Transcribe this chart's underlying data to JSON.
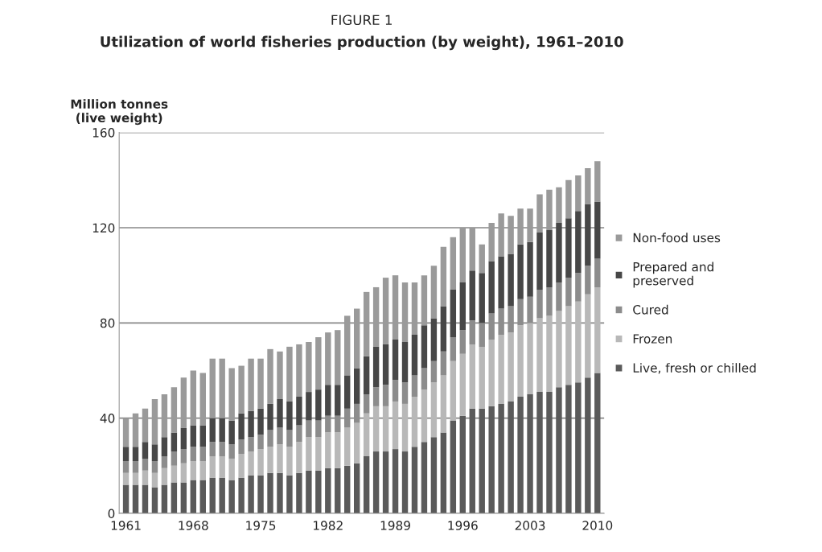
{
  "chart_data": {
    "type": "bar",
    "stacked": true,
    "title": "FIGURE 1",
    "subtitle": "Utilization of world fisheries production (by weight), 1961–2010",
    "ylabel": "Million tonnes\n(live weight)",
    "categories": [
      "1961",
      null,
      null,
      null,
      null,
      null,
      null,
      "1968",
      null,
      null,
      null,
      null,
      null,
      null,
      "1975",
      null,
      null,
      null,
      null,
      null,
      null,
      "1982",
      null,
      null,
      null,
      null,
      null,
      null,
      "1989",
      null,
      null,
      null,
      null,
      null,
      null,
      "1996",
      null,
      null,
      null,
      null,
      null,
      null,
      "2003",
      null,
      null,
      null,
      null,
      null,
      null,
      "2010"
    ],
    "series": [
      {
        "name": "Live, fresh or chilled",
        "color": "#5a5a5a",
        "values": [
          12,
          12,
          12,
          11,
          12,
          13,
          13,
          14,
          14,
          15,
          15,
          14,
          15,
          16,
          16,
          17,
          17,
          16,
          17,
          18,
          18,
          19,
          19,
          20,
          21,
          24,
          26,
          26,
          27,
          26,
          28,
          30,
          32,
          34,
          39,
          41,
          44,
          44,
          45,
          46,
          47,
          49,
          50,
          51,
          51,
          53,
          54,
          55,
          57,
          59
        ]
      },
      {
        "name": "Frozen",
        "color": "#b8b8b8",
        "values": [
          5,
          5,
          6,
          6,
          7,
          7,
          8,
          8,
          8,
          9,
          9,
          9,
          10,
          10,
          11,
          11,
          12,
          12,
          13,
          14,
          14,
          15,
          15,
          16,
          17,
          18,
          19,
          19,
          20,
          20,
          21,
          22,
          23,
          24,
          25,
          26,
          27,
          26,
          28,
          29,
          29,
          30,
          30,
          31,
          32,
          32,
          33,
          34,
          35,
          36
        ]
      },
      {
        "name": "Cured",
        "color": "#8c8c8c",
        "values": [
          5,
          5,
          5,
          5,
          5,
          6,
          6,
          6,
          6,
          6,
          6,
          6,
          6,
          6,
          6,
          7,
          7,
          7,
          7,
          7,
          7,
          7,
          7,
          8,
          8,
          8,
          8,
          9,
          9,
          9,
          9,
          9,
          9,
          10,
          10,
          10,
          10,
          10,
          11,
          11,
          11,
          11,
          11,
          12,
          12,
          12,
          12,
          12,
          12,
          12
        ]
      },
      {
        "name": "Prepared and\npreserved",
        "color": "#474747",
        "values": [
          6,
          6,
          7,
          7,
          8,
          8,
          9,
          9,
          9,
          10,
          10,
          10,
          11,
          11,
          11,
          11,
          12,
          12,
          12,
          12,
          13,
          13,
          13,
          14,
          15,
          16,
          17,
          17,
          17,
          17,
          17,
          18,
          18,
          19,
          20,
          20,
          21,
          21,
          22,
          22,
          22,
          23,
          23,
          24,
          24,
          25,
          25,
          26,
          26,
          24
        ]
      },
      {
        "name": "Non-food uses",
        "color": "#9a9a9a",
        "values": [
          12,
          14,
          14,
          19,
          18,
          19,
          21,
          23,
          22,
          25,
          25,
          22,
          20,
          22,
          21,
          23,
          20,
          23,
          22,
          21,
          22,
          22,
          23,
          25,
          25,
          27,
          25,
          28,
          27,
          25,
          22,
          21,
          22,
          25,
          22,
          23,
          18,
          12,
          16,
          18,
          16,
          15,
          14,
          16,
          17,
          15,
          16,
          15,
          15,
          17
        ]
      }
    ],
    "ylim": [
      0,
      160
    ],
    "yticks": [
      0,
      40,
      80,
      120,
      160
    ],
    "grid": "y",
    "legend": "right"
  }
}
